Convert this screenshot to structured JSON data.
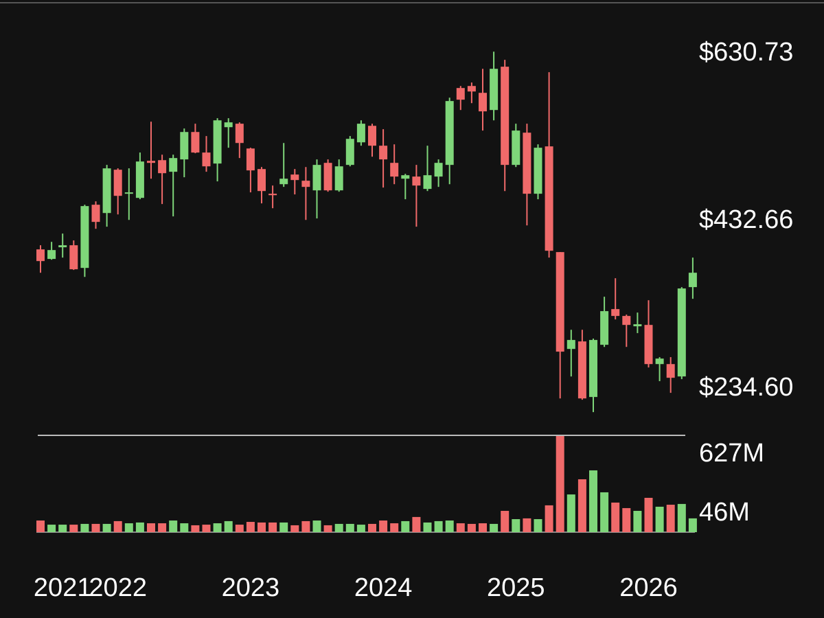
{
  "chart_data": {
    "type": "candlestick",
    "up_color": "#7fd67a",
    "down_color": "#f06a6a",
    "categories": [
      null,
      null,
      "2021",
      null,
      null,
      null,
      null,
      "2022",
      null,
      null,
      null,
      null,
      null,
      null,
      null,
      null,
      null,
      null,
      null,
      "2023",
      null,
      null,
      null,
      null,
      null,
      null,
      null,
      null,
      null,
      null,
      null,
      "2024",
      null,
      null,
      null,
      null,
      null,
      null,
      null,
      null,
      null,
      null,
      null,
      "2025",
      null,
      null,
      null,
      null,
      null,
      null,
      null,
      null,
      null,
      null,
      null,
      "2026",
      null,
      null,
      null,
      null
    ],
    "open": [
      399.2,
      387.9,
      401.7,
      404.1,
      377.3,
      452.0,
      442.2,
      493.4,
      465.0,
      460.1,
      503.9,
      504.7,
      491.0,
      505.6,
      538.0,
      513.7,
      500.7,
      543.7,
      547.8,
      518.5,
      494.2,
      465.0,
      476.3,
      487.7,
      480.4,
      469.0,
      501.5,
      469.0,
      499.1,
      525.8,
      545.3,
      521.8,
      501.5,
      482.8,
      485.3,
      470.7,
      485.3,
      499.1,
      590.0,
      592.4,
      584.3,
      564.0,
      615.2,
      499.1,
      537.2,
      465.0,
      521.0,
      396.0,
      281.5,
      290.4,
      224.7,
      286.4,
      328.6,
      320.5,
      308.3,
      309.9,
      263.6,
      263.6,
      249.0,
      354.6
    ],
    "high": [
      404.1,
      408.1,
      417.9,
      409.8,
      452.0,
      456.0,
      499.1,
      495.0,
      495.0,
      513.7,
      550.2,
      511.2,
      511.2,
      542.1,
      547.8,
      533.2,
      554.3,
      554.3,
      549.4,
      519.4,
      496.6,
      474.7,
      525.0,
      494.2,
      496.6,
      505.6,
      505.6,
      505.6,
      533.2,
      551.8,
      547.8,
      541.3,
      523.4,
      488.5,
      499.1,
      521.8,
      505.6,
      578.6,
      592.4,
      596.5,
      612.7,
      633.0,
      623.3,
      547.8,
      547.8,
      523.4,
      608.7,
      396.0,
      304.2,
      304.2,
      293.7,
      343.2,
      365.1,
      322.1,
      324.5,
      339.1,
      271.8,
      271.8,
      354.6,
      389.5
    ],
    "low": [
      371.6,
      387.0,
      389.5,
      374.9,
      366.7,
      423.6,
      426.0,
      440.6,
      434.1,
      458.5,
      482.8,
      452.8,
      438.2,
      484.5,
      512.9,
      491.0,
      479.6,
      519.4,
      507.2,
      466.6,
      453.6,
      447.9,
      473.1,
      464.2,
      434.1,
      435.8,
      467.4,
      467.4,
      497.4,
      521.8,
      508.8,
      472.3,
      476.3,
      458.5,
      426.0,
      468.2,
      473.1,
      476.3,
      564.0,
      572.1,
      539.7,
      551.8,
      468.2,
      496.6,
      427.6,
      458.5,
      389.5,
      223.0,
      249.0,
      221.4,
      206.8,
      283.9,
      316.4,
      283.9,
      300.2,
      259.6,
      243.4,
      229.6,
      245.8,
      340.8
    ],
    "close": [
      385.4,
      398.4,
      404.1,
      375.7,
      450.4,
      431.7,
      495.0,
      462.5,
      466.6,
      503.1,
      501.5,
      489.3,
      507.2,
      538.0,
      513.7,
      497.4,
      551.8,
      549.4,
      525.0,
      492.6,
      468.2,
      463.3,
      482.8,
      481.2,
      473.1,
      499.1,
      469.0,
      497.4,
      529.9,
      547.8,
      521.8,
      505.6,
      485.3,
      486.9,
      474.7,
      486.9,
      501.5,
      574.6,
      576.2,
      585.9,
      562.4,
      612.7,
      499.1,
      539.7,
      465.0,
      519.4,
      397.6,
      278.3,
      292.1,
      223.0,
      292.1,
      326.2,
      320.5,
      309.9,
      310.7,
      263.6,
      270.1,
      247.4,
      353.0,
      371.6
    ],
    "ylim": [
      190.7,
      690.0
    ],
    "yticks": [
      {
        "value": 630.73,
        "label": "$630.73"
      },
      {
        "value": 432.66,
        "label": "$432.66"
      },
      {
        "value": 234.6,
        "label": "$234.60"
      }
    ],
    "volume": {
      "type": "bar",
      "values": [
        76,
        49,
        49,
        49,
        54,
        54,
        54,
        72,
        58,
        63,
        58,
        58,
        76,
        58,
        45,
        49,
        58,
        72,
        49,
        67,
        63,
        63,
        63,
        45,
        72,
        76,
        45,
        54,
        54,
        49,
        54,
        76,
        58,
        72,
        99,
        63,
        72,
        76,
        58,
        54,
        58,
        54,
        139,
        85,
        90,
        85,
        175,
        627,
        246,
        345,
        403,
        260,
        193,
        157,
        139,
        224,
        166,
        179,
        184,
        90
      ],
      "ylim": [
        0,
        627
      ],
      "yticks": [
        {
          "value": 627,
          "label": "627M"
        },
        {
          "value": 46,
          "label": "46M"
        }
      ]
    }
  }
}
